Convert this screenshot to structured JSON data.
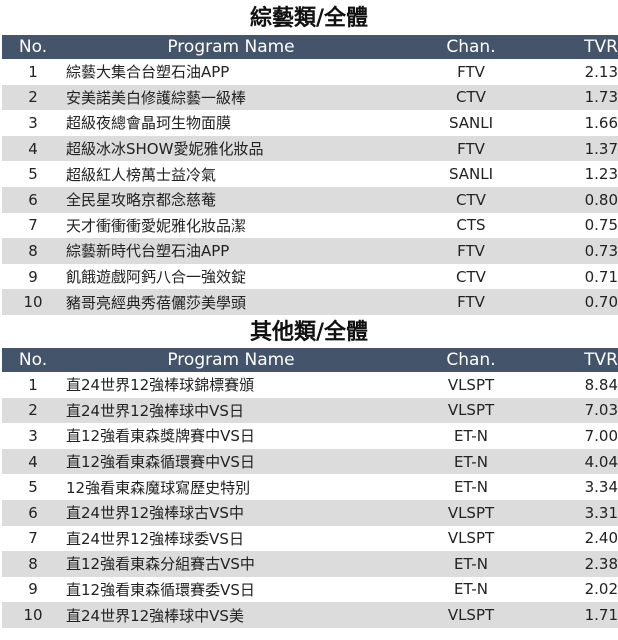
{
  "colors": {
    "header_bg": "#44546a",
    "stripe": "#dcdcdc"
  },
  "headers": {
    "no": "No.",
    "name": "Program Name",
    "chan": "Chan.",
    "tvr": "TVR"
  },
  "tables": [
    {
      "title": "綜藝類/全體",
      "rows": [
        {
          "no": "1",
          "name": "綜藝大集合台塑石油APP",
          "chan": "FTV",
          "tvr": "2.13"
        },
        {
          "no": "2",
          "name": "安美諾美白修護綜藝一級棒",
          "chan": "CTV",
          "tvr": "1.73"
        },
        {
          "no": "3",
          "name": "超級夜總會晶珂生物面膜",
          "chan": "SANLI",
          "tvr": "1.66"
        },
        {
          "no": "4",
          "name": "超級冰冰SHOW愛妮雅化妝品",
          "chan": "FTV",
          "tvr": "1.37"
        },
        {
          "no": "5",
          "name": "超級紅人榜萬士益冷氣",
          "chan": "SANLI",
          "tvr": "1.23"
        },
        {
          "no": "6",
          "name": "全民星攻略京都念慈菴",
          "chan": "CTV",
          "tvr": "0.80"
        },
        {
          "no": "7",
          "name": "天才衝衝衝愛妮雅化妝品潔",
          "chan": "CTS",
          "tvr": "0.75"
        },
        {
          "no": "8",
          "name": "綜藝新時代台塑石油APP",
          "chan": "FTV",
          "tvr": "0.73"
        },
        {
          "no": "9",
          "name": "飢餓遊戲阿鈣八合一強效錠",
          "chan": "CTV",
          "tvr": "0.71"
        },
        {
          "no": "10",
          "name": "豬哥亮經典秀蓓儷莎美學頭",
          "chan": "FTV",
          "tvr": "0.70"
        }
      ]
    },
    {
      "title": "其他類/全體",
      "rows": [
        {
          "no": "1",
          "name": "直24世界12強棒球錦標賽頒",
          "chan": "VLSPT",
          "tvr": "8.84"
        },
        {
          "no": "2",
          "name": "直24世界12強棒球中VS日",
          "chan": "VLSPT",
          "tvr": "7.03"
        },
        {
          "no": "3",
          "name": "直12強看東森獎牌賽中VS日",
          "chan": "ET-N",
          "tvr": "7.00"
        },
        {
          "no": "4",
          "name": "直12強看東森循環賽中VS日",
          "chan": "ET-N",
          "tvr": "4.04"
        },
        {
          "no": "5",
          "name": "12強看東森魔球寫歷史特別",
          "chan": "ET-N",
          "tvr": "3.34"
        },
        {
          "no": "6",
          "name": "直24世界12強棒球古VS中",
          "chan": "VLSPT",
          "tvr": "3.31"
        },
        {
          "no": "7",
          "name": "直24世界12強棒球委VS日",
          "chan": "VLSPT",
          "tvr": "2.40"
        },
        {
          "no": "8",
          "name": "直12強看東森分組賽古VS中",
          "chan": "ET-N",
          "tvr": "2.38"
        },
        {
          "no": "9",
          "name": "直12強看東森循環賽委VS日",
          "chan": "ET-N",
          "tvr": "2.02"
        },
        {
          "no": "10",
          "name": "直24世界12強棒球中VS美",
          "chan": "VLSPT",
          "tvr": "1.71"
        }
      ]
    }
  ]
}
